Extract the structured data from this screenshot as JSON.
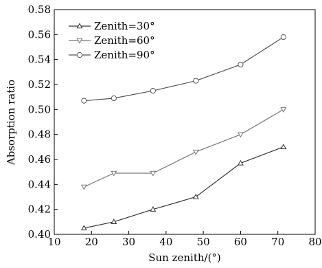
{
  "chart_data": {
    "type": "line",
    "title": "",
    "xlabel": "Sun zenith/(°)",
    "ylabel": "Absorption ratio",
    "xlim": [
      10,
      80
    ],
    "ylim": [
      0.4,
      0.58
    ],
    "xticks": [
      "10",
      "20",
      "30",
      "40",
      "50",
      "60",
      "70",
      "80"
    ],
    "yticks": [
      "0.40",
      "0.42",
      "0.44",
      "0.46",
      "0.48",
      "0.50",
      "0.52",
      "0.54",
      "0.56",
      "0.58"
    ],
    "grid": false,
    "legend_position": "top-left",
    "x": [
      18,
      26,
      36.5,
      48,
      60,
      71.5
    ],
    "series": [
      {
        "name": "Zenith=30°",
        "marker": "triangle-up",
        "color": "#333333",
        "values": [
          0.405,
          0.41,
          0.42,
          0.43,
          0.457,
          0.47
        ]
      },
      {
        "name": "Zenith=60°",
        "marker": "triangle-down",
        "color": "#777777",
        "values": [
          0.438,
          0.449,
          0.449,
          0.466,
          0.48,
          0.5
        ]
      },
      {
        "name": "Zenith=90°",
        "marker": "circle",
        "color": "#555555",
        "values": [
          0.507,
          0.509,
          0.515,
          0.523,
          0.536,
          0.558
        ]
      }
    ]
  }
}
